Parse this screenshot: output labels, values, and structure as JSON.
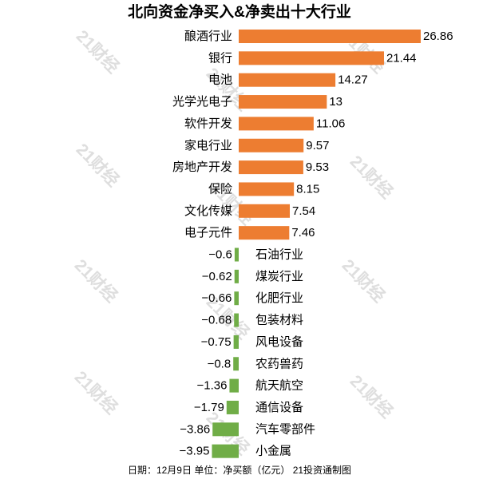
{
  "chart_data": {
    "type": "bar",
    "orientation": "horizontal",
    "title": "北向资金净买入&净卖出十大行业",
    "categories": [
      "酿酒行业",
      "银行",
      "电池",
      "光学光电子",
      "软件开发",
      "家电行业",
      "房地产开发",
      "保险",
      "文化传媒",
      "电子元件",
      "石油行业",
      "煤炭行业",
      "化肥行业",
      "包装材料",
      "风电设备",
      "农药兽药",
      "航天航空",
      "通信设备",
      "汽车零部件",
      "小金属"
    ],
    "values": [
      26.86,
      21.44,
      14.27,
      13,
      11.06,
      9.57,
      9.53,
      8.15,
      7.54,
      7.46,
      -0.6,
      -0.62,
      -0.66,
      -0.68,
      -0.75,
      -0.8,
      -1.36,
      -1.79,
      -3.86,
      -3.95
    ],
    "colors": {
      "positive": "#ED7D31",
      "negative": "#70AD47"
    },
    "grid": false
  },
  "footer": {
    "date": "日期：12月9日",
    "unit": "单位：净买额（亿元）",
    "source": "21投资通制图"
  },
  "watermark": {
    "text": "21财经"
  }
}
